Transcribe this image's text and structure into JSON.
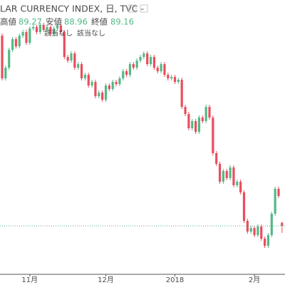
{
  "chart_data": {
    "type": "candlestick",
    "title": "LAR CURRENCY INDEX, 日, TVC -",
    "high_label": "高値",
    "low_label": "安値",
    "close_label": "終値",
    "notes": [
      "該当なし",
      "該当なし"
    ],
    "categories": [
      null,
      null,
      null,
      null,
      null,
      null,
      null,
      null,
      "11月",
      null,
      null,
      null,
      null,
      null,
      null,
      null,
      null,
      null,
      null,
      null,
      null,
      null,
      null,
      null,
      null,
      null,
      null,
      null,
      null,
      null,
      "12月",
      null,
      null,
      null,
      null,
      null,
      null,
      null,
      null,
      null,
      null,
      null,
      null,
      null,
      null,
      null,
      null,
      null,
      null,
      null,
      "2018",
      null,
      null,
      null,
      null,
      null,
      null,
      null,
      null,
      null,
      null,
      null,
      null,
      null,
      null,
      null,
      null,
      null,
      null,
      null,
      null,
      null,
      null,
      "2月",
      null,
      null,
      null,
      null,
      null,
      null,
      null,
      null
    ],
    "open": [
      94.5,
      93.3,
      93.6,
      94.1,
      94.4,
      94.2,
      94.5,
      94.6,
      94.3,
      94.7,
      94.74,
      94.6,
      94.8,
      94.66,
      94.74,
      94.54,
      94.7,
      94.78,
      94.6,
      93.9,
      93.8,
      94.0,
      93.6,
      93.7,
      93.3,
      93.4,
      93.1,
      93.2,
      92.8,
      92.9,
      92.7,
      93.1,
      93.0,
      93.2,
      93.14,
      93.3,
      93.5,
      93.4,
      93.7,
      93.6,
      93.8,
      93.9,
      94.0,
      93.7,
      93.9,
      93.6,
      93.5,
      93.7,
      93.4,
      93.3,
      93.34,
      93.2,
      93.26,
      92.5,
      92.3,
      91.9,
      92.1,
      91.8,
      92.2,
      92.1,
      92.5,
      92.2,
      91.2,
      90.9,
      90.4,
      90.7,
      90.5,
      90.8,
      90.3,
      90.4,
      90.1,
      89.3,
      89.0,
      89.1,
      88.9,
      89.14,
      88.8,
      88.6,
      88.9,
      89.5,
      90.2,
      89.25
    ],
    "high": [
      94.56,
      93.66,
      94.16,
      94.46,
      94.46,
      94.56,
      94.66,
      94.66,
      94.76,
      94.8,
      94.8,
      94.86,
      94.86,
      94.8,
      94.8,
      94.76,
      94.84,
      94.84,
      94.66,
      93.96,
      94.06,
      94.06,
      93.76,
      93.76,
      93.46,
      93.46,
      93.26,
      93.26,
      92.96,
      92.96,
      93.16,
      93.16,
      93.26,
      93.26,
      93.36,
      93.56,
      93.56,
      93.76,
      93.76,
      93.86,
      93.96,
      94.06,
      94.06,
      93.96,
      93.96,
      93.66,
      93.76,
      93.76,
      93.46,
      93.4,
      93.4,
      93.32,
      93.32,
      92.56,
      92.36,
      92.16,
      92.16,
      92.26,
      92.26,
      92.56,
      92.56,
      92.26,
      91.26,
      90.96,
      90.76,
      90.76,
      90.86,
      90.86,
      90.46,
      90.46,
      90.16,
      89.36,
      89.16,
      89.16,
      89.2,
      89.2,
      88.86,
      88.96,
      89.56,
      90.26,
      90.26,
      89.27
    ],
    "low": [
      93.24,
      93.24,
      93.54,
      94.04,
      94.14,
      94.14,
      94.44,
      94.24,
      94.24,
      94.64,
      94.54,
      94.54,
      94.6,
      94.6,
      94.48,
      94.48,
      94.64,
      94.54,
      93.84,
      93.74,
      93.74,
      93.54,
      93.54,
      93.24,
      93.24,
      93.04,
      93.04,
      92.74,
      92.74,
      92.64,
      92.64,
      92.94,
      92.94,
      93.08,
      93.08,
      93.24,
      93.34,
      93.34,
      93.54,
      93.54,
      93.74,
      93.84,
      93.64,
      93.64,
      93.54,
      93.44,
      93.44,
      93.34,
      93.24,
      93.24,
      93.14,
      93.14,
      92.44,
      92.24,
      91.84,
      91.84,
      91.74,
      91.74,
      92.04,
      92.04,
      92.14,
      91.14,
      90.84,
      90.34,
      90.34,
      90.44,
      90.44,
      90.24,
      90.24,
      90.04,
      89.24,
      88.94,
      88.94,
      88.84,
      88.84,
      88.74,
      88.54,
      88.54,
      88.84,
      89.44,
      89.94,
      88.96
    ],
    "close": [
      93.3,
      93.6,
      94.1,
      94.4,
      94.2,
      94.5,
      94.6,
      94.3,
      94.7,
      94.74,
      94.6,
      94.8,
      94.66,
      94.74,
      94.54,
      94.7,
      94.78,
      94.6,
      93.9,
      93.8,
      94.0,
      93.6,
      93.7,
      93.3,
      93.4,
      93.1,
      93.2,
      92.8,
      92.9,
      92.7,
      93.1,
      93.0,
      93.2,
      93.14,
      93.3,
      93.5,
      93.4,
      93.7,
      93.6,
      93.8,
      93.9,
      94.0,
      93.7,
      93.9,
      93.6,
      93.5,
      93.7,
      93.4,
      93.3,
      93.34,
      93.2,
      93.26,
      92.5,
      92.3,
      91.9,
      92.1,
      91.8,
      92.2,
      92.1,
      92.5,
      92.2,
      91.2,
      90.9,
      90.4,
      90.7,
      90.5,
      90.8,
      90.3,
      90.4,
      90.1,
      89.3,
      89.0,
      89.1,
      88.9,
      89.14,
      88.8,
      88.6,
      88.9,
      89.5,
      90.2,
      90.0,
      89.16
    ],
    "ylim": [
      87.8,
      95.5
    ],
    "up_color": "#53b987",
    "down_color": "#eb4d5c"
  }
}
